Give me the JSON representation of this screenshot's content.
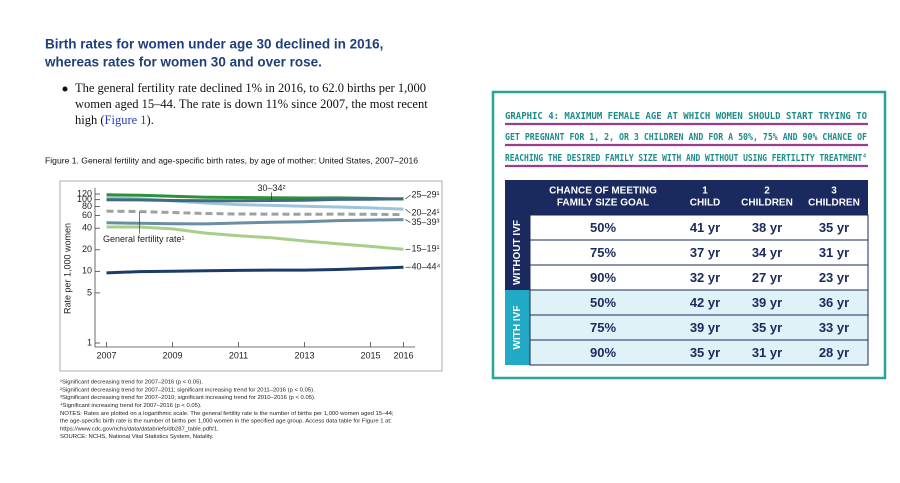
{
  "document": {
    "heading": [
      "Birth rates for women under age 30 declined in 2016,",
      "whereas rates for women 30 and over rose."
    ],
    "bullet": [
      "The general fertility rate declined 1% in 2016, to 62.0 births per 1,000",
      "women aged 15–44. The rate is down 11% since 2007, the most recent"
    ],
    "bullet_end": [
      "high (",
      "Figure 1",
      ")."
    ],
    "caption": "Figure 1. General fertility and age-specific birth rates, by age of mother: United States, 2007–2016",
    "footnotes": [
      "¹Significant decreasing trend for 2007–2016 (p < 0.05).",
      "²Significant decreasing trend for 2007–2011; significant increasing trend for 2011–2016 (p < 0.05).",
      "³Significant decreasing trend for 2007–2010; significant increasing trend for 2010–2016 (p < 0.05).",
      "⁴Significant increasing trend for 2007–2016 (p < 0.05).",
      "NOTES: Rates are plotted on a logarithmic scale. The general fertility rate is the number of births per 1,000 women aged 15–44;",
      "the age-specific birth rate is the number of births per 1,000 women in the specified age group. Access data table for Figure 1 at:"
    ],
    "link": "https://www.cdc.gov/nchs/data/databriefs/db287_table.pdf#1.",
    "source": "SOURCE: NCHS, National Vital Statistics System, Natality."
  },
  "chart_data": {
    "type": "line",
    "ylabel": "Rate per 1,000 women",
    "x": [
      2007,
      2008,
      2009,
      2010,
      2011,
      2012,
      2013,
      2014,
      2015,
      2016
    ],
    "xlim": [
      2006.65,
      2016.35
    ],
    "xticks": [
      2007,
      2009,
      2011,
      2013,
      2015,
      2016
    ],
    "ylim": [
      1,
      120
    ],
    "log_scale": true,
    "yticks": [
      1,
      5,
      10,
      20,
      40,
      60,
      80,
      100,
      120
    ],
    "series": [
      {
        "name": "25–29¹",
        "color": "#2f8f3a",
        "values": [
          117.5,
          115.1,
          111.5,
          108.3,
          107.2,
          106.5,
          105.5,
          105.8,
          104.3,
          102.1
        ]
      },
      {
        "name": "20–24¹",
        "color": "#9cc4dc",
        "values": [
          106.3,
          103.0,
          96.2,
          90.0,
          85.3,
          83.1,
          80.7,
          79.0,
          76.8,
          73.8
        ]
      },
      {
        "name": "30–34²",
        "color": "#3f6b7e",
        "values": [
          99.9,
          99.3,
          97.5,
          96.5,
          96.5,
          97.3,
          98.0,
          100.8,
          101.5,
          102.7
        ]
      },
      {
        "name": "35–39³",
        "color": "#6b8ea0",
        "values": [
          47.5,
          46.8,
          46.1,
          45.9,
          47.2,
          48.3,
          49.3,
          51.0,
          51.8,
          52.7
        ]
      },
      {
        "name": "15–19¹",
        "color": "#a8cf8a",
        "values": [
          41.5,
          41.5,
          39.1,
          34.2,
          31.3,
          29.4,
          26.5,
          24.2,
          22.3,
          20.3
        ]
      },
      {
        "name": "40–44⁴",
        "color": "#1b3c6b",
        "values": [
          9.5,
          9.9,
          10.0,
          10.2,
          10.3,
          10.4,
          10.4,
          10.6,
          11.0,
          11.4
        ]
      },
      {
        "name": "General fertility rate¹",
        "color": "#a0a0a0",
        "dashed": true,
        "values": [
          69.3,
          68.1,
          66.2,
          64.1,
          63.2,
          63.0,
          62.5,
          62.9,
          62.5,
          62.0
        ]
      }
    ]
  },
  "graphic": {
    "title": [
      "GRAPHIC 4: MAXIMUM FEMALE AGE AT WHICH WOMEN SHOULD START TRYING TO",
      "GET PREGNANT FOR 1, 2, OR 3 CHILDREN AND FOR A 50%, 75% AND 90% CHANCE OF",
      "REACHING THE DESIRED FAMILY SIZE WITH AND WITHOUT USING FERTILITY TREATMENT⁴"
    ],
    "header": [
      [
        "CHANCE OF MEETING",
        "FAMILY SIZE GOAL"
      ],
      [
        "1",
        "CHILD"
      ],
      [
        "2",
        "CHILDREN"
      ],
      [
        "3",
        "CHILDREN"
      ]
    ],
    "groups": [
      {
        "label": "WITHOUT IVF",
        "rows": [
          [
            "50%",
            "41 yr",
            "38 yr",
            "35 yr"
          ],
          [
            "75%",
            "37 yr",
            "34 yr",
            "31 yr"
          ],
          [
            "90%",
            "32 yr",
            "27 yr",
            "23 yr"
          ]
        ]
      },
      {
        "label": "WITH IVF",
        "rows": [
          [
            "50%",
            "42 yr",
            "39 yr",
            "36 yr"
          ],
          [
            "75%",
            "39 yr",
            "35 yr",
            "33 yr"
          ],
          [
            "90%",
            "35 yr",
            "31 yr",
            "28 yr"
          ]
        ]
      }
    ]
  }
}
